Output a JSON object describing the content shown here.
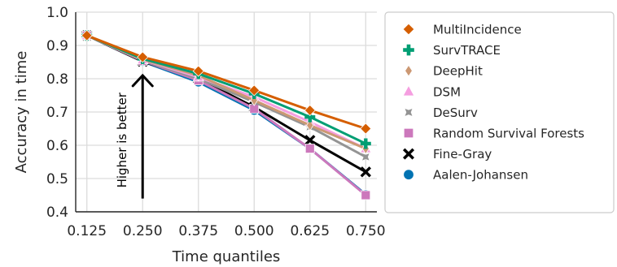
{
  "chart_data": {
    "type": "line",
    "xlabel": "Time quantiles",
    "ylabel": "Accuracy in time",
    "x": [
      0.125,
      0.25,
      0.375,
      0.5,
      0.625,
      0.75
    ],
    "x_tick_labels": [
      "0.125",
      "0.250",
      "0.375",
      "0.500",
      "0.625",
      "0.750"
    ],
    "ylim": [
      0.4,
      1.0
    ],
    "y_ticks": [
      0.4,
      0.5,
      0.6,
      0.7,
      0.8,
      0.9,
      1.0
    ],
    "y_tick_labels": [
      "0.4",
      "0.5",
      "0.6",
      "0.7",
      "0.8",
      "0.9",
      "1.0"
    ],
    "grid": true,
    "legend_position": "right",
    "annotation": {
      "text": "Higher is better",
      "arrow_direction": "up",
      "arrow_from": [
        0.25,
        0.44
      ],
      "arrow_to": [
        0.25,
        0.81
      ]
    },
    "series": [
      {
        "name": "MultiIncidence",
        "color": "#d55e00",
        "marker": "diamond",
        "values": [
          0.93,
          0.865,
          0.823,
          0.765,
          0.705,
          0.65
        ]
      },
      {
        "name": "SurvTRACE",
        "color": "#009e73",
        "marker": "plus",
        "values": [
          0.93,
          0.86,
          0.815,
          0.755,
          0.685,
          0.605
        ]
      },
      {
        "name": "DeepHit",
        "color": "#cc9873",
        "marker": "thin-diamond",
        "values": [
          0.93,
          0.858,
          0.81,
          0.735,
          0.66,
          0.59
        ]
      },
      {
        "name": "DSM",
        "color": "#f59ee0",
        "marker": "triangle",
        "values": [
          0.93,
          0.857,
          0.805,
          0.745,
          0.67,
          0.59
        ]
      },
      {
        "name": "DeSurv",
        "color": "#949494",
        "marker": "star",
        "values": [
          0.93,
          0.855,
          0.8,
          0.73,
          0.655,
          0.565
        ]
      },
      {
        "name": "Random Survival Forests",
        "color": "#cc78bc",
        "marker": "square",
        "values": [
          0.93,
          0.854,
          0.795,
          0.71,
          0.59,
          0.45
        ]
      },
      {
        "name": "Fine-Gray",
        "color": "#000000",
        "marker": "x",
        "values": [
          0.93,
          0.852,
          0.8,
          0.715,
          0.615,
          0.52
        ]
      },
      {
        "name": "Aalen-Johansen",
        "color": "#0173b2",
        "marker": "circle",
        "values": [
          0.93,
          0.852,
          0.79,
          0.705,
          0.59,
          0.452
        ]
      }
    ]
  }
}
